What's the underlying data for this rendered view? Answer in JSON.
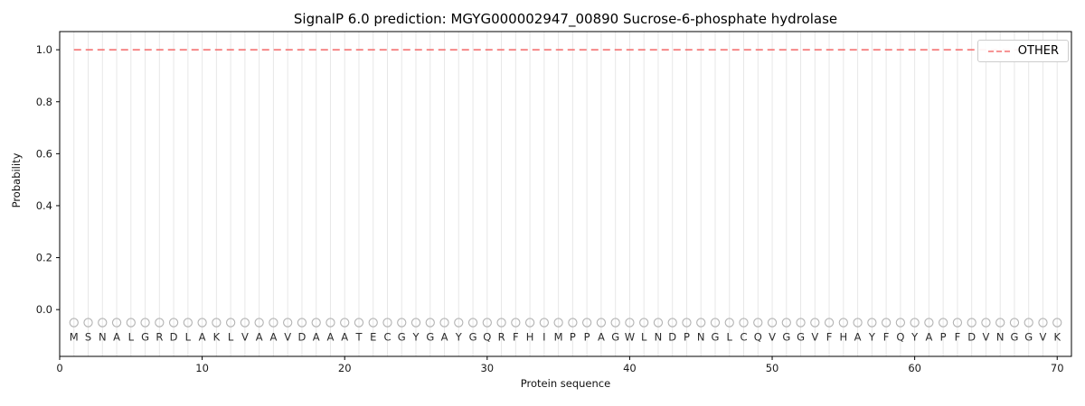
{
  "chart_data": {
    "type": "line",
    "title": "SignalP 6.0 prediction: MGYG000002947_00890 Sucrose-6-phosphate hydrolase",
    "xlabel": "Protein sequence",
    "ylabel": "Probability",
    "xlim": [
      0,
      71
    ],
    "ylim": [
      -0.18,
      1.07
    ],
    "xticks": [
      0,
      10,
      20,
      30,
      40,
      50,
      60,
      70
    ],
    "yticks": [
      0.0,
      0.2,
      0.4,
      0.6,
      0.8,
      1.0
    ],
    "sequence": "MSNALGRDLAKLVAAVDAAATECGYGAYGQRFHIMPPAGWLNDPNGLCQVGGVFHAYFQYAPFDVNGGVK",
    "series": [
      {
        "name": "OTHER",
        "style": "dashed",
        "color": "#f47272",
        "constant_value": 1.0
      }
    ],
    "markers": {
      "y": -0.05,
      "color": "#b3b3b3"
    },
    "sequence_label_y": -0.105,
    "grid": "vertical-per-residue",
    "grid_color": "#e7e7e7",
    "legend_position": "upper right",
    "axis_color": "#000000",
    "tick_label_color": "#1a1a1a",
    "letter_color": "#2a2a2a"
  }
}
